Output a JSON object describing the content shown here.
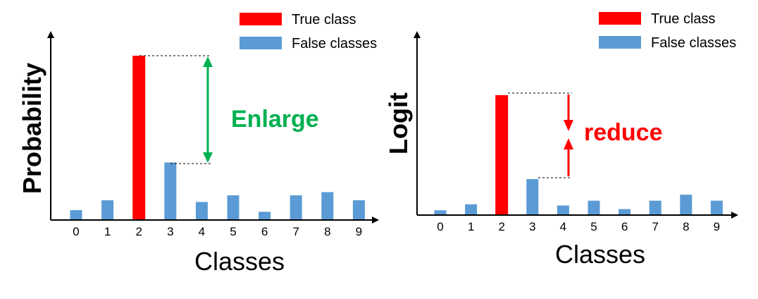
{
  "colors": {
    "true_class": "#ff0000",
    "false_class": "#5b9bd5",
    "enlarge": "#00b050",
    "reduce": "#ff0000",
    "axis": "#000000"
  },
  "chart_data": [
    {
      "type": "bar",
      "ylabel": "Probability",
      "xlabel": "Classes",
      "categories": [
        "0",
        "1",
        "2",
        "3",
        "4",
        "5",
        "6",
        "7",
        "8",
        "9"
      ],
      "values": [
        0.06,
        0.12,
        1.0,
        0.35,
        0.11,
        0.15,
        0.05,
        0.15,
        0.17,
        0.12
      ],
      "true_class": "2",
      "ylim": [
        0,
        1.12
      ],
      "legend": {
        "true_label": "True class",
        "false_label": "False classes",
        "position": "top-right"
      },
      "annotation": {
        "text": "Enlarge",
        "color": "#00b050",
        "from_category": "3",
        "to_category": "2",
        "style": "double-arrow"
      }
    },
    {
      "type": "bar",
      "ylabel": "Logit",
      "xlabel": "Classes",
      "categories": [
        "0",
        "1",
        "2",
        "3",
        "4",
        "5",
        "6",
        "7",
        "8",
        "9"
      ],
      "values": [
        0.04,
        0.09,
        1.0,
        0.3,
        0.08,
        0.12,
        0.05,
        0.12,
        0.17,
        0.12
      ],
      "true_class": "2",
      "ylim": [
        0,
        1.44
      ],
      "legend": {
        "true_label": "True class",
        "false_label": "False classes",
        "position": "top-right"
      },
      "annotation": {
        "text": "reduce",
        "color": "#ff0000",
        "from_category": "3",
        "to_category": "2",
        "style": "converging-arrows"
      }
    }
  ]
}
